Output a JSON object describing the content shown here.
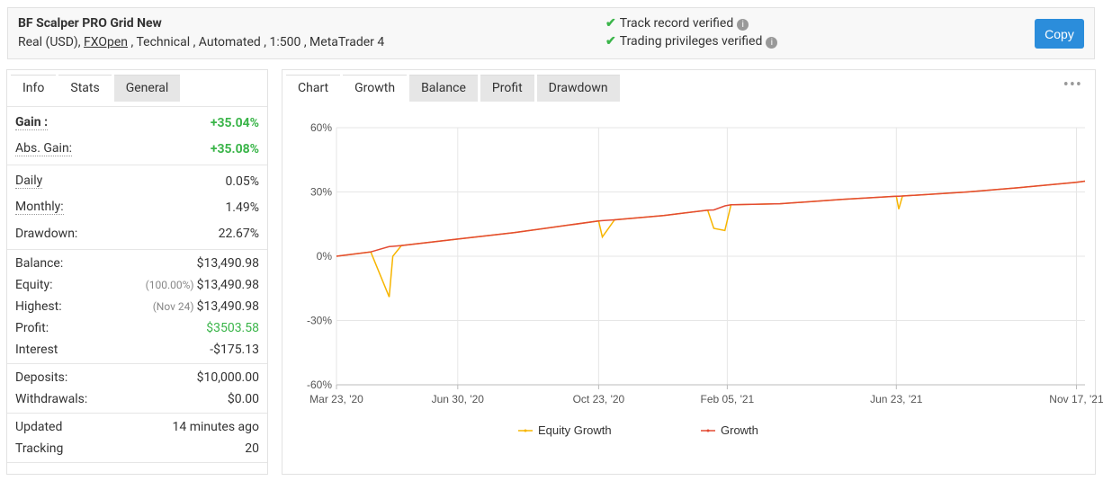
{
  "header": {
    "title": "BF Scalper PRO Grid New",
    "subtitle_start": "Real (USD),",
    "broker": "FXOpen",
    "subtitle_end": ", Technical , Automated , 1:500 , MetaTrader 4",
    "verified": [
      "Track record verified",
      "Trading privileges verified"
    ],
    "button": "Copy"
  },
  "stats_tabs": {
    "items": [
      "Info",
      "Stats",
      "General"
    ],
    "active": 1
  },
  "stats": [
    [
      {
        "label": "Gain :",
        "value": "+35.04%",
        "color": "#3bb54a"
      },
      {
        "label": "Abs. Gain:",
        "value": "+35.08%",
        "color": "#3bb54a"
      }
    ],
    [
      {
        "label": "Daily",
        "value": "0.05%"
      },
      {
        "label": "Monthly:",
        "value": "1.49%"
      },
      {
        "label": "Drawdown:",
        "value": "22.67%"
      }
    ],
    [
      {
        "label": "Balance:",
        "value": "$13,490.98"
      },
      {
        "label": "Equity:",
        "note": "(100.00%)",
        "value": "$13,490.98"
      },
      {
        "label": "Highest:",
        "note": "(Nov 24)",
        "value": "$13,490.98"
      },
      {
        "label": "Profit:",
        "value": "$3503.58",
        "color": "#3bb54a"
      },
      {
        "label": "Interest",
        "value": "-$175.13"
      }
    ],
    [
      {
        "label": "Deposits:",
        "value": "$10,000.00"
      },
      {
        "label": "Withdrawals:",
        "value": "$0.00"
      }
    ],
    [
      {
        "label": "Updated",
        "value": "14 minutes ago"
      },
      {
        "label": "Tracking",
        "value": "20"
      }
    ]
  ],
  "chart_tabs": {
    "items": [
      "Chart",
      "Growth",
      "Balance",
      "Profit",
      "Drawdown"
    ],
    "active": 1
  },
  "chart_data": {
    "type": "line",
    "x": [
      "2020-03-23",
      "2020-04-20",
      "2020-05-05",
      "2020-05-08",
      "2020-05-15",
      "2020-06-30",
      "2020-08-15",
      "2020-10-23",
      "2020-10-26",
      "2020-11-05",
      "2020-12-15",
      "2021-01-20",
      "2021-01-25",
      "2021-02-03",
      "2021-02-08",
      "2021-03-20",
      "2021-05-10",
      "2021-06-23",
      "2021-06-25",
      "2021-06-28",
      "2021-08-20",
      "2021-10-01",
      "2021-11-17",
      "2021-11-24"
    ],
    "series": [
      {
        "name": "Equity Growth",
        "color": "#f7b500",
        "values": [
          0,
          2,
          -19,
          0,
          5,
          8,
          11,
          16.5,
          9,
          17,
          19,
          21.5,
          13,
          12,
          24,
          24.5,
          26.5,
          28,
          22,
          28.1,
          30,
          32,
          34.5,
          35.04
        ]
      },
      {
        "name": "Growth",
        "color": "#e34a33",
        "values": [
          0,
          2,
          4.5,
          4.6,
          5,
          8,
          11,
          16.5,
          16.6,
          17,
          19,
          21.5,
          21.6,
          23.5,
          24,
          24.5,
          26.5,
          28,
          28,
          28.1,
          30,
          32,
          34.5,
          35.04
        ]
      }
    ],
    "xlim": [
      "2020-03-23",
      "2021-11-24"
    ],
    "xticks": [
      {
        "value": "2020-03-23",
        "label": "Mar 23, '20"
      },
      {
        "value": "2020-06-30",
        "label": "Jun 30, '20"
      },
      {
        "value": "2020-10-23",
        "label": "Oct 23, '20"
      },
      {
        "value": "2021-02-05",
        "label": "Feb 05, '21"
      },
      {
        "value": "2021-06-23",
        "label": "Jun 23, '21"
      },
      {
        "value": "2021-11-17",
        "label": "Nov 17, '21"
      }
    ],
    "ylim": [
      -60,
      60
    ],
    "yticks": [
      {
        "value": 60,
        "label": "60%"
      },
      {
        "value": 30,
        "label": "30%"
      },
      {
        "value": 0,
        "label": "0%"
      },
      {
        "value": -30,
        "label": "-30%"
      },
      {
        "value": -60,
        "label": "-60%"
      }
    ],
    "grid": true
  }
}
